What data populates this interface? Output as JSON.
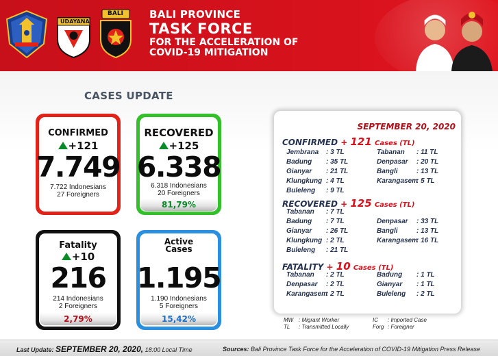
{
  "header": {
    "title_line1": "BALI PROVINCE",
    "title_line2": "TASK FORCE",
    "title_line3": "FOR THE ACCELERATION OF",
    "title_line4": "COVID-19 MITIGATION",
    "logo_udayana_label": "UDAYANA",
    "logo_police_label": "BALI"
  },
  "main": {
    "section_title": "CASES UPDATE"
  },
  "cards": {
    "confirmed": {
      "label": "CONFIRMED",
      "delta": "+121",
      "total": "7.749",
      "line1": "7.722 Indonesians",
      "line2": "27 Foreigners"
    },
    "recovered": {
      "label": "RECOVERED",
      "delta": "+125",
      "total": "6.338",
      "line1": "6.318 Indonesians",
      "line2": "20 Foreigners",
      "percent": "81,79%"
    },
    "fatality": {
      "label": "Fatality",
      "delta": "+10",
      "total": "216",
      "line1": "214 Indonesians",
      "line2": "2 Foreigners",
      "percent": "2,79%"
    },
    "active": {
      "label_line1": "Active",
      "label_line2": "Cases",
      "total": "1.195",
      "line1": "1.190 Indonesians",
      "line2": "5 Foreigners",
      "percent": "15,42%"
    }
  },
  "panel": {
    "date": "SEPTEMBER 20, 2020",
    "confirmed": {
      "title": "CONFIRMED",
      "plus": "+",
      "count": "121",
      "cases": "Cases (TL)",
      "left": [
        {
          "name": "Jembrana",
          "value": ": 3 TL"
        },
        {
          "name": "Badung",
          "value": ": 35 TL"
        },
        {
          "name": "Gianyar",
          "value": ": 21 TL"
        },
        {
          "name": "Klungkung",
          "value": ": 4 TL"
        },
        {
          "name": "Buleleng",
          "value": ": 9 TL"
        }
      ],
      "right": [
        {
          "name": "Tabanan",
          "value": ": 11 TL"
        },
        {
          "name": "Denpasar",
          "value": ": 20 TL"
        },
        {
          "name": "Bangli",
          "value": ": 13 TL"
        },
        {
          "name": "Karangasem",
          "value": ": 5 TL"
        }
      ]
    },
    "recovered": {
      "title": "RECOVERED",
      "plus": "+",
      "count": "125",
      "cases": "Cases (TL)",
      "left": [
        {
          "name": "Tabanan",
          "value": ": 7 TL"
        },
        {
          "name": "Badung",
          "value": ": 7 TL"
        },
        {
          "name": "Gianyar",
          "value": ": 26 TL"
        },
        {
          "name": "Klungkung",
          "value": ": 2 TL"
        },
        {
          "name": "Buleleng",
          "value": ": 21 TL"
        }
      ],
      "right": [
        {
          "name": "Denpasar",
          "value": ": 33 TL"
        },
        {
          "name": "Bangli",
          "value": ": 13 TL"
        },
        {
          "name": "Karangasem",
          "value": ": 16 TL"
        }
      ]
    },
    "fatality": {
      "title": "FATALITY",
      "plus": "+",
      "count": "10",
      "cases": "Cases (TL)",
      "left": [
        {
          "name": "Tabanan",
          "value": ": 2 TL"
        },
        {
          "name": "Denpasar",
          "value": ": 2 TL"
        },
        {
          "name": "Karangasem",
          "value": ": 2 TL"
        }
      ],
      "right": [
        {
          "name": "Badung",
          "value": ": 1 TL"
        },
        {
          "name": "Gianyar",
          "value": ": 1 TL"
        },
        {
          "name": "Buleleng",
          "value": ": 2 TL"
        }
      ]
    }
  },
  "legend": {
    "mw_key": "MW",
    "mw_val": ": Migrant Worker",
    "tl_key": "TL",
    "tl_val": ": Transmitted Locally",
    "ic_key": "IC",
    "ic_val": ": Imported Case",
    "forg_key": "Forg",
    "forg_val": ": Foreigner"
  },
  "footer": {
    "last_update_label": "Last Update:",
    "last_update_date": "SEPTEMBER 20, 2020,",
    "last_update_time": "18:00 Local Time",
    "sources_label": "Sources:",
    "sources_text": "Bali Province Task Force for the Acceleration of COVID-19 Mitigation Press Release"
  },
  "colors": {
    "header_red": "#d8121d",
    "confirmed_border": "#e2231a",
    "recovered_border": "#34c02a",
    "fatality_border": "#111111",
    "active_border": "#2b8fe0",
    "recovered_percent": "#0b8a2a",
    "fatality_percent": "#b1101a",
    "active_percent": "#1f6fc0"
  }
}
